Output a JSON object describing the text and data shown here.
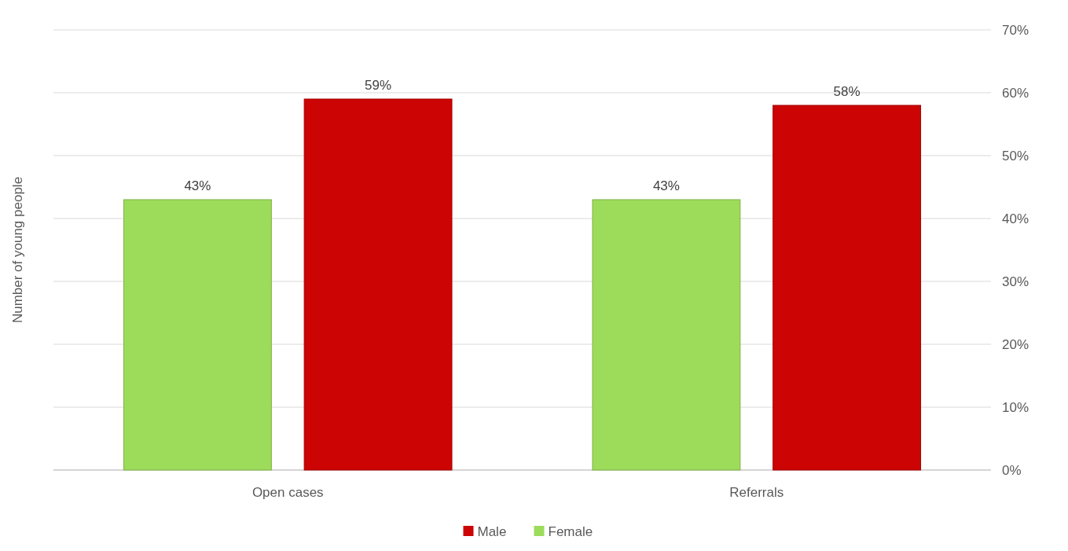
{
  "chart_data": {
    "type": "bar",
    "ylabel": "Number of young people",
    "categories": [
      "Open cases",
      "Referrals"
    ],
    "series": [
      {
        "name": "Female",
        "color": "#9cdc5a",
        "values": [
          43,
          43
        ],
        "value_labels": [
          "43%",
          "43%"
        ]
      },
      {
        "name": "Male",
        "color": "#cc0404",
        "values": [
          59,
          58
        ],
        "value_labels": [
          "59%",
          "58%"
        ]
      }
    ],
    "ylim": [
      0,
      70
    ],
    "yticks": [
      {
        "value": 0,
        "label": "0%"
      },
      {
        "value": 10,
        "label": "10%"
      },
      {
        "value": 20,
        "label": "20%"
      },
      {
        "value": 30,
        "label": "30%"
      },
      {
        "value": 40,
        "label": "40%"
      },
      {
        "value": 50,
        "label": "50%"
      },
      {
        "value": 60,
        "label": "60%"
      },
      {
        "value": 70,
        "label": "70%"
      }
    ],
    "grid": "y",
    "legend": "bottom"
  }
}
